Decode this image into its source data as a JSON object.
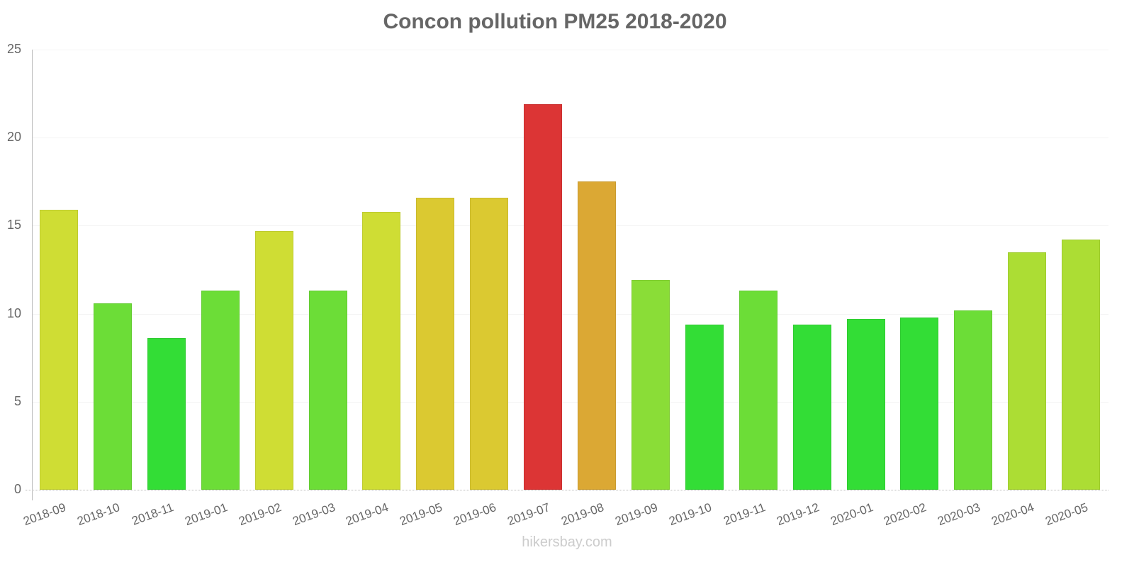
{
  "title": "Concon pollution PM25 2018-2020",
  "footer": "hikersbay.com",
  "y_ticks": [
    "0",
    "5",
    "10",
    "15",
    "20",
    "25"
  ],
  "chart_data": {
    "type": "bar",
    "title": "Concon pollution PM25 2018-2020",
    "xlabel": "",
    "ylabel": "",
    "ylim": [
      0,
      25
    ],
    "grid": true,
    "legend": null,
    "categories": [
      "2018-09",
      "2018-10",
      "2018-11",
      "2019-01",
      "2019-02",
      "2019-03",
      "2019-04",
      "2019-05",
      "2019-06",
      "2019-07",
      "2019-08",
      "2019-09",
      "2019-10",
      "2019-11",
      "2019-12",
      "2020-01",
      "2020-02",
      "2020-03",
      "2020-04",
      "2020-05"
    ],
    "values": [
      15.9,
      10.6,
      8.6,
      11.3,
      14.7,
      11.3,
      15.8,
      16.6,
      16.6,
      21.9,
      17.5,
      11.9,
      9.4,
      11.3,
      9.4,
      9.7,
      9.8,
      10.2,
      13.5,
      14.2
    ],
    "colors": [
      "#cfdd34",
      "#6cdd37",
      "#33dd36",
      "#6cdd37",
      "#cfdd34",
      "#6cdd37",
      "#cfdd34",
      "#dbc931",
      "#dbc931",
      "#dc3535",
      "#dba834",
      "#8add37",
      "#33dd36",
      "#6cdd37",
      "#33dd36",
      "#33dd36",
      "#33dd36",
      "#6cdd37",
      "#acdd34",
      "#acdd34"
    ]
  }
}
